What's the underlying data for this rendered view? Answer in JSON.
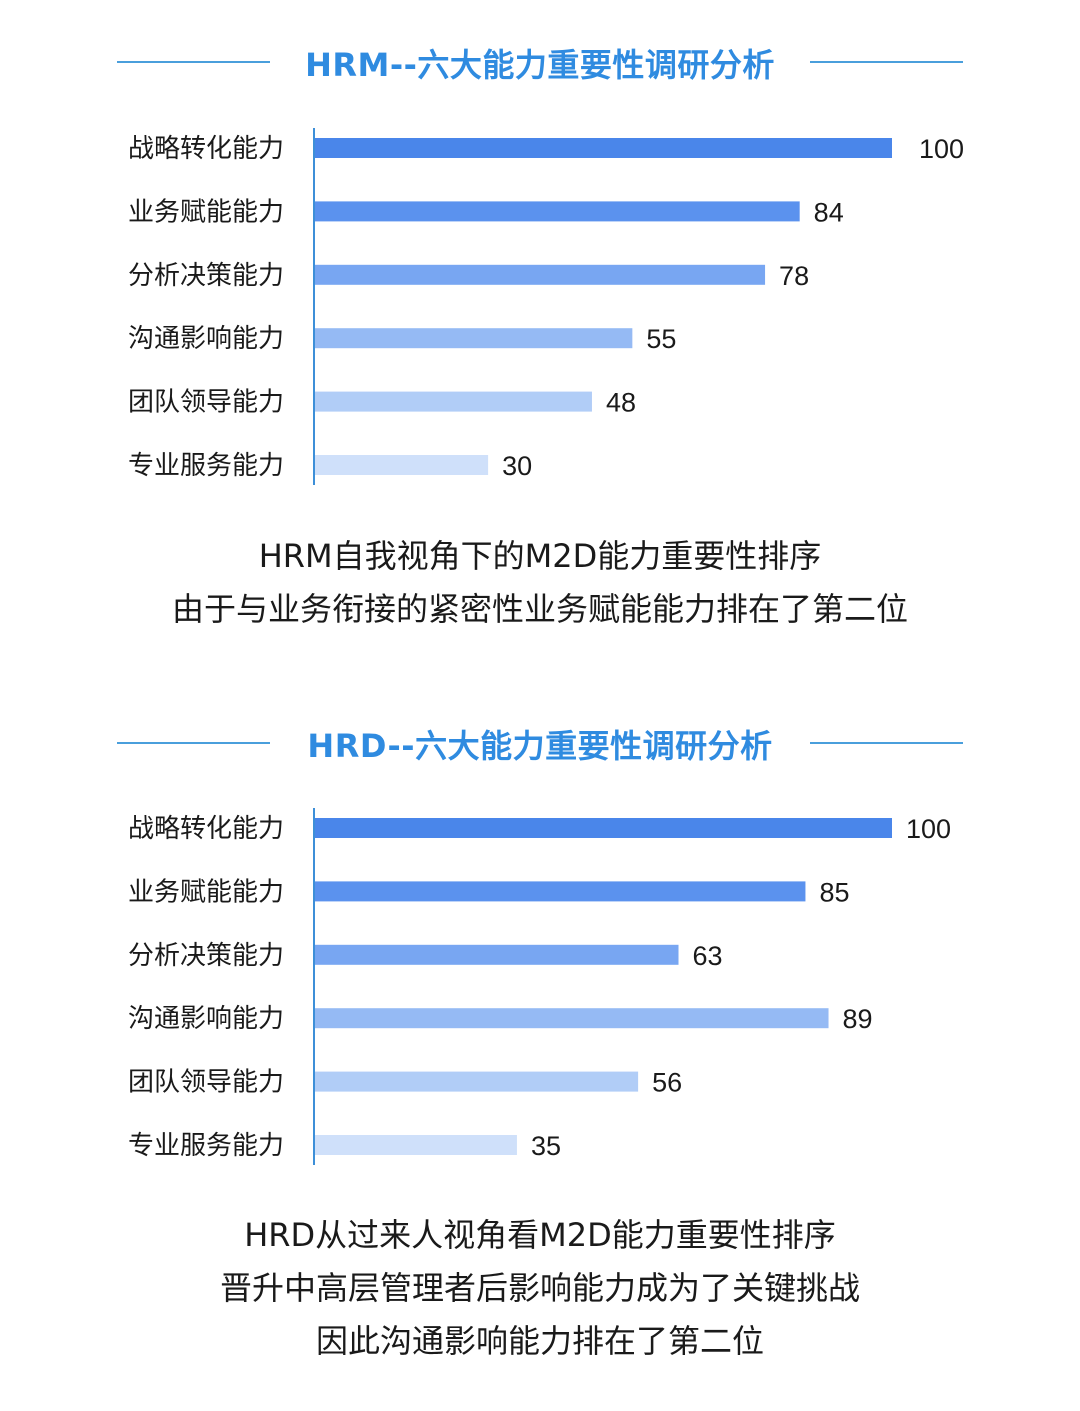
{
  "chart_data": [
    {
      "type": "bar",
      "orientation": "horizontal",
      "title": "HRM--六大能力重要性调研分析",
      "categories": [
        "战略转化能力",
        "业务赋能能力",
        "分析决策能力",
        "沟通影响能力",
        "团队领导能力",
        "专业服务能力"
      ],
      "values": [
        100,
        84,
        78,
        55,
        48,
        30
      ],
      "value_labels": [
        "100",
        "84",
        "78",
        "55",
        "48",
        "30"
      ],
      "xlim": [
        0,
        100
      ],
      "grid": false,
      "bar_colors": [
        "#4a86ea",
        "#5b92ee",
        "#78a6f2",
        "#95baf4",
        "#b1cdf7",
        "#cfe0fa"
      ]
    },
    {
      "type": "bar",
      "orientation": "horizontal",
      "title": "HRD--六大能力重要性调研分析",
      "categories": [
        "战略转化能力",
        "业务赋能能力",
        "分析决策能力",
        "沟通影响能力",
        "团队领导能力",
        "专业服务能力"
      ],
      "values": [
        100,
        85,
        63,
        89,
        56,
        35
      ],
      "value_labels": [
        "100",
        "85",
        "63",
        "89",
        "56",
        "35"
      ],
      "xlim": [
        0,
        100
      ],
      "grid": false,
      "bar_colors": [
        "#4a86ea",
        "#5b92ee",
        "#78a6f2",
        "#95baf4",
        "#b1cdf7",
        "#cfe0fa"
      ]
    }
  ],
  "captions": [
    [
      "HRM自我视角下的M2D能力重要性排序",
      "由于与业务衔接的紧密性业务赋能能力排在了第二位"
    ],
    [
      "HRD从过来人视角看M2D能力重要性排序",
      "晋升中高层管理者后影响能力成为了关键挑战",
      "因此沟通影响能力排在了第二位"
    ]
  ],
  "colors": {
    "accent": "#2f8be0",
    "title_line": "#4a9fdc",
    "axis": "#3d8fd8"
  }
}
